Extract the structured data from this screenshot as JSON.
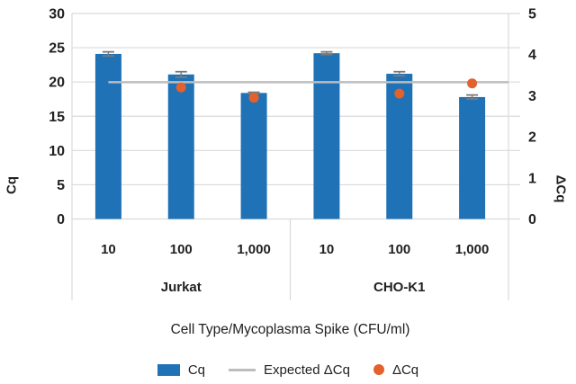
{
  "chart_data": {
    "type": "bar",
    "subtype": "grouped bars with scatter overlay, dual y-axis",
    "title": "",
    "xlabel": "Cell Type/Mycoplasma Spike (CFU/ml)",
    "left_axis": {
      "label": "Cq",
      "min": 0,
      "max": 30,
      "ticks": [
        0,
        5,
        10,
        15,
        20,
        25,
        30
      ]
    },
    "right_axis": {
      "label": "ΔCq",
      "min": 0,
      "max": 5,
      "ticks": [
        0,
        1,
        2,
        3,
        4,
        5
      ]
    },
    "groups": [
      {
        "label": "Jurkat"
      },
      {
        "label": "CHO-K1"
      }
    ],
    "categories": [
      "10",
      "100",
      "1,000",
      "10",
      "100",
      "1,000"
    ],
    "grid": true,
    "legend_position": "bottom",
    "series": [
      {
        "name": "Cq",
        "type": "bar",
        "axis": "left",
        "color": "#1f72b5",
        "values": [
          24.1,
          21.1,
          18.4,
          24.2,
          21.2,
          17.8
        ],
        "errors": [
          0.3,
          0.4,
          0.1,
          0.2,
          0.3,
          0.3
        ]
      },
      {
        "name": "Expected ΔCq",
        "type": "line",
        "axis": "right",
        "color": "#bdbdbd",
        "value": 3.33
      },
      {
        "name": "ΔCq",
        "type": "scatter",
        "axis": "right",
        "color": "#e2612c",
        "values": [
          null,
          3.2,
          2.95,
          null,
          3.05,
          3.3
        ]
      }
    ],
    "colors": {
      "grid": "#dadada",
      "error_bar": "#7a7a7a",
      "text": "#212121"
    }
  }
}
